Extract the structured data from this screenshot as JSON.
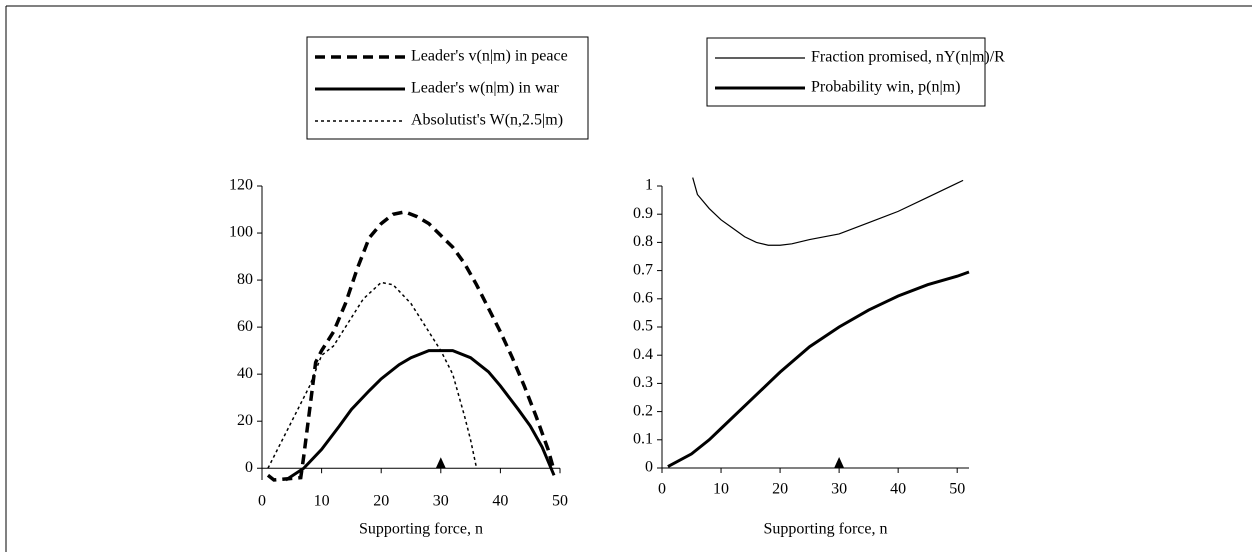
{
  "chart_data": [
    {
      "type": "line",
      "xlabel": "Supporting force, n",
      "xlim": [
        0,
        50
      ],
      "ylim": [
        -5,
        120
      ],
      "xticks": [
        0,
        10,
        20,
        30,
        40,
        50
      ],
      "yticks": [
        0,
        20,
        40,
        60,
        80,
        100,
        120
      ],
      "marker_x": 30,
      "series": [
        {
          "name": "Leader's v(n|m) in peace",
          "color": "#000000",
          "style": "dashed",
          "x": [
            1,
            2,
            6.5,
            7,
            8,
            9,
            10,
            12,
            14,
            16,
            18,
            20,
            22,
            24,
            26,
            28,
            30,
            32,
            34,
            36,
            38,
            40,
            42,
            44,
            46,
            48,
            49
          ],
          "values": [
            -3,
            -5,
            -4,
            5,
            25,
            45,
            50,
            58,
            70,
            85,
            98,
            104,
            108,
            109,
            107,
            104,
            99,
            94,
            87,
            78,
            68,
            58,
            47,
            35,
            22,
            8,
            -1
          ]
        },
        {
          "name": "Leader's w(n|m) in war",
          "color": "#000000",
          "style": "solid",
          "x": [
            4,
            7,
            10,
            13,
            15,
            18,
            20,
            23,
            25,
            28,
            30,
            32,
            35,
            38,
            40,
            43,
            45,
            47,
            48,
            49
          ],
          "values": [
            -5,
            0,
            8,
            18,
            25,
            33,
            38,
            44,
            47,
            50,
            50,
            50,
            47,
            41,
            35,
            25,
            18,
            9,
            3,
            -3
          ]
        },
        {
          "name": "Absolutist's W(n,2.5|m)",
          "color": "#000000",
          "style": "dotted",
          "x": [
            1,
            3,
            5,
            8,
            10,
            12,
            14,
            17,
            20,
            22,
            25,
            28,
            30,
            32,
            34,
            35,
            36
          ],
          "values": [
            0,
            10,
            20,
            35,
            48,
            52,
            60,
            72,
            79,
            78,
            70,
            58,
            50,
            40,
            22,
            12,
            0
          ]
        }
      ]
    },
    {
      "type": "line",
      "xlabel": "Supporting force, n",
      "xlim": [
        0,
        52
      ],
      "ylim": [
        0,
        1
      ],
      "xticks": [
        0,
        10,
        20,
        30,
        40,
        50
      ],
      "yticks": [
        0,
        0.1,
        0.2,
        0.3,
        0.4,
        0.5,
        0.6,
        0.7,
        0.8,
        0.9,
        1
      ],
      "marker_x": 30,
      "series": [
        {
          "name": "Fraction promised, nY(n|m)/R",
          "color": "#000000",
          "style": "thin",
          "x": [
            5.2,
            6,
            8,
            10,
            12,
            14,
            16,
            18,
            20,
            22,
            25,
            30,
            35,
            40,
            45,
            50,
            51
          ],
          "values": [
            1.03,
            0.97,
            0.92,
            0.88,
            0.85,
            0.82,
            0.8,
            0.79,
            0.79,
            0.795,
            0.81,
            0.83,
            0.87,
            0.91,
            0.96,
            1.01,
            1.02
          ]
        },
        {
          "name": "Probability win, p(n|m)",
          "color": "#000000",
          "style": "solid",
          "x": [
            1,
            5,
            8,
            10,
            15,
            20,
            25,
            30,
            35,
            40,
            45,
            50,
            52
          ],
          "values": [
            0.005,
            0.05,
            0.1,
            0.14,
            0.24,
            0.34,
            0.43,
            0.5,
            0.56,
            0.61,
            0.65,
            0.68,
            0.695
          ]
        }
      ]
    }
  ]
}
